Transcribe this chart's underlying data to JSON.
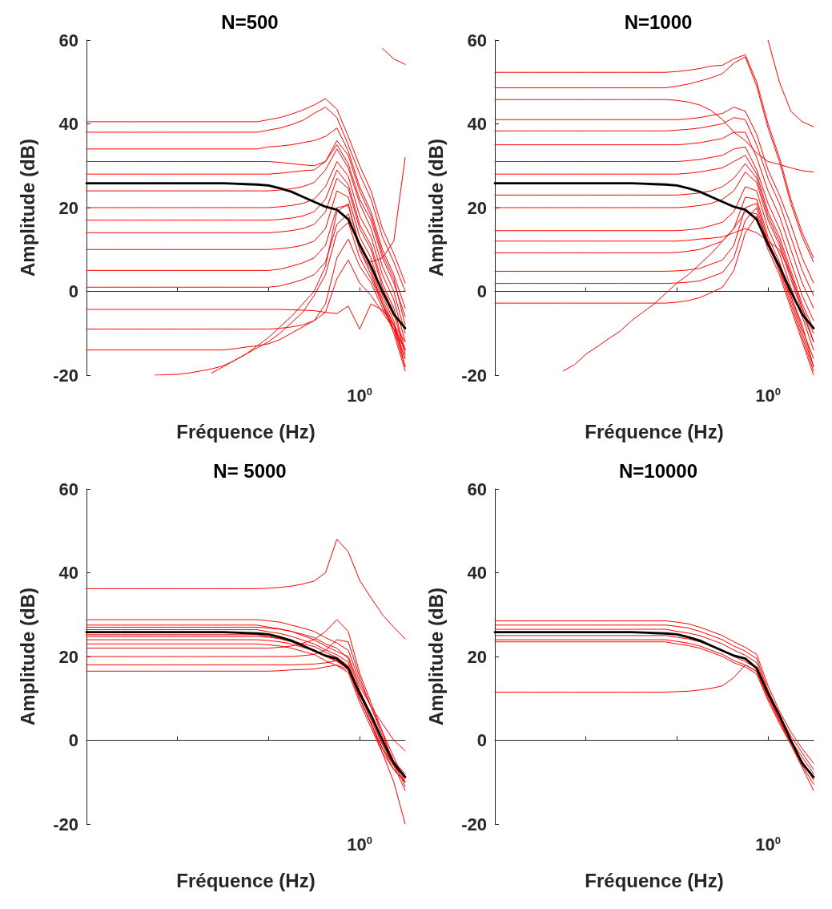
{
  "chart_data": [
    {
      "type": "line",
      "title": "N=500",
      "xlabel": "Fréquence (Hz)",
      "ylabel": "Amplitude (dB)",
      "marker": "none",
      "line_style": "solid",
      "ylim": [
        -20,
        60
      ],
      "yticks": [
        -20,
        0,
        20,
        40,
        60
      ],
      "categories": [
        null,
        null,
        null,
        null,
        null,
        null,
        null,
        null,
        null,
        null,
        null,
        null,
        null,
        null,
        null,
        null,
        null,
        null,
        null,
        null,
        null,
        null,
        null,
        null,
        "10$^{0}$",
        null,
        null,
        null,
        null
      ],
      "series": [
        {
          "color": "#ff0000",
          "values": [
            40.5,
            40.5,
            40.5,
            40.5,
            40.5,
            40.5,
            40.5,
            40.5,
            40.5,
            40.5,
            40.5,
            40.5,
            40.5,
            40.5,
            40.5,
            40.5,
            41,
            41.5,
            42.3,
            43.3,
            44.5,
            46,
            43.5,
            37,
            30,
            24,
            15,
            9,
            2
          ]
        },
        {
          "color": "#ff0000",
          "values": [
            38,
            38,
            38,
            38,
            38,
            38,
            38,
            38,
            38,
            38,
            38,
            38,
            38,
            38,
            38,
            38,
            38.5,
            39,
            39.8,
            40.8,
            42.5,
            44,
            41.5,
            35,
            28,
            22,
            13,
            7,
            0
          ]
        },
        {
          "color": "#ff0000",
          "values": [
            34,
            34,
            34,
            34,
            34,
            34,
            34,
            34,
            34,
            34,
            34,
            34,
            34,
            34,
            34,
            34,
            34.5,
            34.7,
            35,
            35.5,
            36,
            37,
            39,
            33.5,
            25,
            19,
            10,
            4,
            -4
          ]
        },
        {
          "color": "#ff0000",
          "values": [
            31,
            31,
            31,
            31,
            31,
            31,
            31,
            31,
            31,
            31,
            31,
            31,
            31,
            31,
            31,
            31,
            31,
            30.8,
            30.5,
            30.2,
            30,
            31,
            35,
            30.5,
            22,
            17,
            8,
            2,
            -6
          ]
        },
        {
          "color": "#ff0000",
          "values": [
            28,
            28,
            28,
            28,
            28,
            28,
            28,
            28,
            28,
            28,
            28,
            28,
            28,
            28,
            28,
            28,
            28,
            28.2,
            28.5,
            28.8,
            29,
            31,
            36,
            32.5,
            24,
            18,
            9,
            3,
            -8
          ]
        },
        {
          "color": "#ff0000",
          "values": [
            24,
            24,
            24,
            24,
            24,
            24,
            24,
            24,
            24,
            24,
            24,
            24,
            24,
            24,
            24,
            24,
            24,
            24.2,
            24.5,
            25,
            26,
            29,
            34,
            29.5,
            21,
            15,
            6,
            0,
            -10
          ]
        },
        {
          "color": "#ff0000",
          "values": [
            20,
            20,
            20,
            20,
            20,
            20,
            20,
            20,
            20,
            20,
            20,
            20,
            20,
            20,
            20,
            20,
            20,
            20.2,
            20.5,
            21,
            22,
            25,
            31,
            27.5,
            18,
            13,
            4,
            -2,
            -12
          ]
        },
        {
          "color": "#ff0000",
          "values": [
            17,
            17,
            17,
            17,
            17,
            17,
            17,
            17,
            17,
            17,
            17,
            17,
            17,
            17,
            17,
            17,
            17,
            17.2,
            17.5,
            18,
            19,
            22,
            29,
            25.5,
            16,
            11,
            2,
            -4,
            -14
          ]
        },
        {
          "color": "#ff0000",
          "values": [
            14,
            14,
            14,
            14,
            14,
            14,
            14,
            14,
            14,
            14,
            14,
            14,
            14,
            14,
            14,
            14,
            14,
            14.2,
            14.5,
            15,
            16,
            19,
            27,
            24.5,
            15,
            10,
            1,
            -5,
            -15
          ]
        },
        {
          "color": "#ff0000",
          "values": [
            10,
            10,
            10,
            10,
            10,
            10,
            10,
            10,
            10,
            10,
            10,
            10,
            10,
            10,
            10,
            10,
            10,
            10.2,
            10.5,
            11,
            12,
            15,
            24,
            22.5,
            13,
            8,
            -1,
            -7,
            -18
          ]
        },
        {
          "color": "#ff0000",
          "values": [
            5,
            5,
            5,
            5,
            5,
            5,
            5,
            5,
            5,
            5,
            5,
            5,
            5,
            5,
            5,
            5,
            5,
            5.3,
            6,
            6.8,
            8,
            11,
            20,
            20.5,
            11,
            6,
            -2,
            -8,
            -16
          ]
        },
        {
          "color": "#ff0000",
          "values": [
            1,
            1,
            1,
            1,
            1,
            1,
            1,
            1,
            1,
            1,
            1,
            1,
            1,
            1,
            1,
            1,
            1,
            1.3,
            2,
            2.8,
            4,
            7,
            16,
            18.5,
            10,
            5,
            -3,
            -10,
            -19
          ]
        },
        {
          "color": "#ff0000",
          "values": [
            -4.3,
            -4.3,
            -4.3,
            -4.3,
            -4.3,
            -4.3,
            -4.3,
            -4.3,
            -4.3,
            -4.3,
            -4.3,
            -4.3,
            -4.3,
            -4.3,
            -4.3,
            -4.3,
            -4.3,
            -4.3,
            -4.4,
            -4.5,
            -4.6,
            -5,
            -5.3,
            -3.5,
            -9,
            -3,
            -4.5,
            -8,
            -12
          ]
        },
        {
          "color": "#ff0000",
          "values": [
            -9,
            -9,
            -9,
            -9,
            -9,
            -9,
            -9,
            -9,
            -9,
            -9,
            -9,
            -9,
            -9,
            -9,
            -9,
            -9,
            -9,
            -8.8,
            -8.5,
            -8,
            -7,
            -5,
            3,
            7.5,
            2,
            -1,
            -5,
            -9,
            -14
          ]
        },
        {
          "color": "#ff0000",
          "values": [
            -14,
            -14,
            -14,
            -14,
            -14,
            -14,
            -14,
            -14,
            -14,
            -14,
            -14,
            -14,
            -14,
            -13.7,
            -13.3,
            -13,
            -12.5,
            -11.5,
            -10,
            -8.5,
            -7,
            -3,
            8,
            12.5,
            6,
            2,
            -4,
            -9,
            -18
          ]
        },
        {
          "color": "#ff0000",
          "values": [
            null,
            null,
            null,
            null,
            null,
            null,
            -20,
            -19.9,
            -19.8,
            -19.5,
            -19,
            -18.5,
            -17.8,
            -16.5,
            -15,
            -13.5,
            -12,
            -10,
            -7.5,
            -5,
            -1,
            4,
            14,
            16.5,
            8,
            3,
            -3,
            -8,
            -14
          ]
        },
        {
          "color": "#ff0000",
          "values": [
            null,
            null,
            null,
            null,
            null,
            null,
            null,
            null,
            null,
            null,
            null,
            -19.5,
            -18,
            -16.5,
            -15,
            -13,
            -11,
            -8.5,
            -6,
            -3,
            0,
            6,
            19,
            21,
            10,
            4,
            -3,
            -9,
            -16
          ]
        },
        {
          "color": "#ff0000",
          "values": [
            null,
            null,
            null,
            null,
            null,
            null,
            null,
            null,
            null,
            null,
            null,
            null,
            null,
            null,
            null,
            null,
            null,
            null,
            null,
            null,
            null,
            null,
            null,
            null,
            null,
            null,
            58,
            55.5,
            54.2
          ]
        },
        {
          "color": "#ff0000",
          "values": [
            null,
            null,
            null,
            null,
            null,
            null,
            null,
            null,
            null,
            null,
            null,
            null,
            null,
            null,
            null,
            null,
            null,
            null,
            null,
            null,
            null,
            null,
            null,
            null,
            10,
            7,
            8,
            12,
            32
          ]
        },
        {
          "color": "#000000",
          "values": [
            25.8,
            25.8,
            25.8,
            25.8,
            25.8,
            25.8,
            25.8,
            25.8,
            25.8,
            25.8,
            25.8,
            25.8,
            25.8,
            25.7,
            25.6,
            25.5,
            25.3,
            24.6,
            23.8,
            22.6,
            21.4,
            20.2,
            19.5,
            17.2,
            11.2,
            6,
            0,
            -5.5,
            -8.8
          ]
        }
      ]
    },
    {
      "type": "line",
      "title": "N=1000",
      "xlabel": "Fréquence (Hz)",
      "ylabel": "Amplitude (dB)",
      "marker": "none",
      "line_style": "solid",
      "ylim": [
        -20,
        60
      ],
      "yticks": [
        -20,
        0,
        20,
        40,
        60
      ],
      "categories": [
        null,
        null,
        null,
        null,
        null,
        null,
        null,
        null,
        null,
        null,
        null,
        null,
        null,
        null,
        null,
        null,
        null,
        null,
        null,
        null,
        null,
        null,
        null,
        null,
        "10$^{0}$",
        null,
        null,
        null,
        null
      ],
      "series": [
        {
          "color": "#ff0000",
          "values": [
            52.3,
            52.3,
            52.3,
            52.3,
            52.3,
            52.3,
            52.3,
            52.3,
            52.3,
            52.3,
            52.3,
            52.3,
            52.3,
            52.3,
            52.3,
            52.3,
            52.5,
            52.8,
            53.2,
            53.8,
            54,
            55.5,
            56.5,
            50,
            40,
            32,
            22,
            14,
            8
          ]
        },
        {
          "color": "#ff0000",
          "values": [
            48.6,
            48.6,
            48.6,
            48.6,
            48.6,
            48.6,
            48.6,
            48.6,
            48.6,
            48.6,
            48.6,
            48.6,
            48.6,
            48.6,
            48.6,
            48.6,
            49,
            49.5,
            50.2,
            51,
            52,
            54.5,
            56,
            49,
            39,
            31,
            21,
            13,
            7
          ]
        },
        {
          "color": "#ff0000",
          "values": [
            45.8,
            45.8,
            45.8,
            45.8,
            45.8,
            45.8,
            45.8,
            45.8,
            45.8,
            45.8,
            45.8,
            45.8,
            45.8,
            45.8,
            45.8,
            45.8,
            45.6,
            45.2,
            44.5,
            43.2,
            41,
            38,
            36,
            33,
            31,
            30.3,
            29.5,
            28.8,
            28.5
          ]
        },
        {
          "color": "#ff0000",
          "values": [
            41,
            41,
            41,
            41,
            41,
            41,
            41,
            41,
            41,
            41,
            41,
            41,
            41,
            41,
            41,
            41,
            41,
            41.2,
            41.5,
            42,
            42.5,
            44,
            43,
            37.5,
            29,
            23,
            16,
            8,
            2
          ]
        },
        {
          "color": "#ff0000",
          "values": [
            38.3,
            38.3,
            38.3,
            38.3,
            38.3,
            38.3,
            38.3,
            38.3,
            38.3,
            38.3,
            38.3,
            38.3,
            38.3,
            38.3,
            38.3,
            38.3,
            38.5,
            38.7,
            39,
            39.5,
            40,
            41.5,
            41,
            35,
            27,
            21,
            13,
            5,
            -1
          ]
        },
        {
          "color": "#ff0000",
          "values": [
            35,
            35,
            35,
            35,
            35,
            35,
            35,
            35,
            35,
            35,
            35,
            35,
            35,
            35,
            35,
            35,
            35,
            35.2,
            35.5,
            36,
            36.5,
            38,
            38,
            32,
            24,
            18,
            10,
            2,
            -4
          ]
        },
        {
          "color": "#ff0000",
          "values": [
            31,
            31,
            31,
            31,
            31,
            31,
            31,
            31,
            31,
            31,
            31,
            31,
            31,
            31,
            31,
            31,
            31,
            31.2,
            31.5,
            32,
            32.5,
            34,
            34.5,
            29,
            21,
            15,
            7,
            -1,
            -7
          ]
        },
        {
          "color": "#ff0000",
          "values": [
            28,
            28,
            28,
            28,
            28,
            28,
            28,
            28,
            28,
            28,
            28,
            28,
            28,
            28,
            28,
            28,
            28,
            28.2,
            28.5,
            29,
            29.5,
            31,
            32.5,
            28,
            19,
            13,
            5,
            -3,
            -9
          ]
        },
        {
          "color": "#ff0000",
          "values": [
            23,
            23,
            23,
            23,
            23,
            23,
            23,
            23,
            23,
            23,
            23,
            23,
            23,
            23,
            23,
            23,
            23,
            23.2,
            23.5,
            24,
            25,
            27,
            30.5,
            27,
            18,
            12,
            4,
            -4,
            -10
          ]
        },
        {
          "color": "#ff0000",
          "values": [
            20,
            20,
            20,
            20,
            20,
            20,
            20,
            20,
            20,
            20,
            20,
            20,
            20,
            20,
            20,
            20,
            20,
            20.2,
            20.5,
            21,
            22,
            24,
            28.5,
            26,
            17,
            11,
            3,
            -5,
            -12
          ]
        },
        {
          "color": "#ff0000",
          "values": [
            14.5,
            14.5,
            14.5,
            14.5,
            14.5,
            14.5,
            14.5,
            14.5,
            14.5,
            14.5,
            14.5,
            14.5,
            14.5,
            14.5,
            14.5,
            14.5,
            14.5,
            14.7,
            15,
            15.7,
            16.5,
            19,
            25,
            24,
            15,
            9,
            1,
            -6,
            -14
          ]
        },
        {
          "color": "#ff0000",
          "values": [
            12,
            12,
            12,
            12,
            12,
            12,
            12,
            12,
            12,
            12,
            12,
            12,
            12,
            12,
            12,
            12,
            12,
            12.2,
            12.5,
            12.7,
            13,
            14,
            15,
            14,
            12,
            10,
            4,
            -4,
            -12
          ]
        },
        {
          "color": "#ff0000",
          "values": [
            9.2,
            9.2,
            9.2,
            9.2,
            9.2,
            9.2,
            9.2,
            9.2,
            9.2,
            9.2,
            9.2,
            9.2,
            9.2,
            9.2,
            9.2,
            9.2,
            9.3,
            9.6,
            10,
            11,
            12,
            15,
            22.5,
            22,
            13,
            7,
            -1,
            -9,
            -16
          ]
        },
        {
          "color": "#ff0000",
          "values": [
            4.8,
            4.8,
            4.8,
            4.8,
            4.8,
            4.8,
            4.8,
            4.8,
            4.8,
            4.8,
            4.8,
            4.8,
            4.8,
            4.8,
            4.8,
            4.8,
            4.9,
            5.1,
            5.5,
            6.5,
            7.5,
            11,
            20,
            21,
            12,
            6,
            -2,
            -10,
            -18
          ]
        },
        {
          "color": "#ff0000",
          "values": [
            1.9,
            1.9,
            1.9,
            1.9,
            1.9,
            1.9,
            1.9,
            1.9,
            1.9,
            1.9,
            1.9,
            1.9,
            1.9,
            1.9,
            1.9,
            1.9,
            2,
            2.2,
            2.5,
            3.5,
            4.5,
            8,
            17,
            20,
            11,
            5,
            -3,
            -11,
            -19
          ]
        },
        {
          "color": "#ff0000",
          "values": [
            -2.8,
            -2.8,
            -2.8,
            -2.8,
            -2.8,
            -2.8,
            -2.8,
            -2.8,
            -2.8,
            -2.8,
            -2.8,
            -2.8,
            -2.8,
            -2.8,
            -2.8,
            -2.8,
            -2.6,
            -2.2,
            -1.5,
            -0.3,
            1,
            5,
            14,
            18,
            10,
            4,
            -4,
            -12,
            -20
          ]
        },
        {
          "color": "#ff0000",
          "values": [
            null,
            null,
            null,
            null,
            null,
            null,
            -19,
            -17.5,
            -15,
            -13.2,
            -11.3,
            -9.5,
            -7,
            -5,
            -3,
            -0.5,
            2,
            4,
            6.5,
            9,
            12,
            15,
            19,
            18.5,
            12,
            5,
            -1,
            -8,
            -18
          ]
        },
        {
          "color": "#ff0000",
          "values": [
            null,
            null,
            null,
            null,
            null,
            null,
            null,
            null,
            null,
            null,
            null,
            null,
            null,
            null,
            null,
            null,
            null,
            null,
            null,
            null,
            null,
            null,
            null,
            null,
            60,
            50,
            43,
            40.5,
            39.3
          ]
        },
        {
          "color": "#000000",
          "values": [
            25.8,
            25.8,
            25.8,
            25.8,
            25.8,
            25.8,
            25.8,
            25.8,
            25.8,
            25.8,
            25.8,
            25.8,
            25.8,
            25.7,
            25.6,
            25.5,
            25.3,
            24.6,
            23.8,
            22.6,
            21.4,
            20.2,
            19.5,
            17.2,
            11.2,
            6,
            0,
            -5.5,
            -8.8
          ]
        }
      ]
    },
    {
      "type": "line",
      "title": "N= 5000",
      "xlabel": "Fréquence (Hz)",
      "ylabel": "Amplitude (dB)",
      "marker": "none",
      "line_style": "solid",
      "ylim": [
        -20,
        60
      ],
      "yticks": [
        -20,
        0,
        20,
        40,
        60
      ],
      "categories": [
        null,
        null,
        null,
        null,
        null,
        null,
        null,
        null,
        null,
        null,
        null,
        null,
        null,
        null,
        null,
        null,
        null,
        null,
        null,
        null,
        null,
        null,
        null,
        null,
        "10$^{0}$",
        null,
        null,
        null,
        null
      ],
      "series": [
        {
          "color": "#ff0000",
          "values": [
            36.2,
            36.2,
            36.2,
            36.2,
            36.2,
            36.2,
            36.2,
            36.2,
            36.2,
            36.2,
            36.2,
            36.2,
            36.2,
            36.2,
            36.2,
            36.2,
            36.3,
            36.5,
            36.8,
            37.3,
            38,
            40,
            48,
            45,
            38.2,
            34,
            30,
            27,
            24.2
          ]
        },
        {
          "color": "#ff0000",
          "values": [
            28.8,
            28.8,
            28.8,
            28.8,
            28.8,
            28.8,
            28.8,
            28.8,
            28.8,
            28.8,
            28.8,
            28.8,
            28.8,
            28.8,
            28.8,
            28.8,
            28.5,
            28.2,
            27.5,
            26.8,
            26,
            24.5,
            23.2,
            21.5,
            14,
            8,
            2,
            -4,
            -10
          ]
        },
        {
          "color": "#ff0000",
          "values": [
            27.5,
            27.5,
            27.5,
            27.5,
            27.5,
            27.5,
            27.5,
            27.5,
            27.5,
            27.5,
            27.5,
            27.5,
            27.5,
            27.5,
            27.5,
            27.5,
            27,
            26.6,
            26,
            25.3,
            24.5,
            23,
            22,
            19.5,
            12,
            6,
            0,
            -5,
            -11
          ]
        },
        {
          "color": "#ff0000",
          "values": [
            27,
            27,
            27,
            27,
            27,
            27,
            27,
            27,
            27,
            27,
            27,
            27,
            27,
            27,
            27,
            27,
            26.8,
            26.5,
            26,
            25,
            24,
            22.5,
            21.2,
            20,
            13,
            8,
            4,
            0,
            -2.5
          ]
        },
        {
          "color": "#ff0000",
          "values": [
            26.4,
            26.4,
            26.4,
            26.4,
            26.4,
            26.4,
            26.4,
            26.4,
            26.4,
            26.4,
            26.4,
            26.4,
            26.4,
            26.4,
            26.4,
            26.4,
            25.9,
            25.5,
            24.8,
            23.9,
            23,
            21.6,
            20.4,
            18.6,
            11,
            5,
            -1,
            -6,
            -9
          ]
        },
        {
          "color": "#ff0000",
          "values": [
            25.2,
            25.2,
            25.2,
            25.2,
            25.2,
            25.2,
            25.2,
            25.2,
            25.2,
            25.2,
            25.2,
            25.2,
            25.2,
            25.2,
            25.2,
            25.2,
            24.8,
            24.2,
            23.5,
            22.6,
            21.6,
            20.2,
            19,
            17,
            10,
            4,
            -3,
            -10,
            -20
          ]
        },
        {
          "color": "#ff0000",
          "values": [
            24.8,
            24.8,
            24.8,
            24.8,
            24.8,
            24.8,
            24.8,
            24.8,
            24.8,
            24.8,
            24.8,
            24.8,
            24.8,
            24.8,
            24.8,
            24.8,
            24.6,
            24.3,
            23.8,
            23,
            22.4,
            21,
            19.8,
            17.8,
            11,
            5,
            -1,
            -6,
            -10
          ]
        },
        {
          "color": "#ff0000",
          "values": [
            24,
            24,
            24,
            24,
            24,
            24,
            24,
            24,
            24,
            24,
            24,
            24,
            24,
            24,
            24,
            24,
            23.8,
            23.5,
            23,
            22.2,
            21.5,
            20,
            18.8,
            17,
            10,
            4,
            -2,
            -6,
            -9
          ]
        },
        {
          "color": "#ff0000",
          "values": [
            23,
            23,
            23,
            23,
            23,
            23,
            23,
            23,
            23,
            23,
            23,
            23,
            23,
            23,
            23,
            23,
            22.8,
            22.5,
            22,
            21.2,
            20.5,
            19,
            17.8,
            16.2,
            9,
            3,
            -3,
            -7,
            -10
          ]
        },
        {
          "color": "#ff0000",
          "values": [
            22,
            22,
            22,
            22,
            22,
            22,
            22,
            22,
            22,
            22,
            22,
            22,
            22,
            22,
            22,
            22,
            22,
            22.2,
            22.5,
            23.2,
            24,
            26,
            28.8,
            26,
            16,
            9,
            2,
            -6,
            -12
          ]
        },
        {
          "color": "#ff0000",
          "values": [
            20,
            20,
            20,
            20,
            20,
            20,
            20,
            20,
            20,
            20,
            20,
            20,
            20,
            20,
            20,
            20,
            20,
            20,
            20,
            20.2,
            20.5,
            21.5,
            24,
            23.5,
            15,
            8,
            1,
            -5,
            -8
          ]
        },
        {
          "color": "#ff0000",
          "values": [
            18,
            18,
            18,
            18,
            18,
            18,
            18,
            18,
            18,
            18,
            18,
            18,
            18,
            18,
            18,
            18,
            18,
            18,
            18,
            18.1,
            18.2,
            18.5,
            19,
            17.5,
            10,
            4,
            -2,
            -6,
            -9
          ]
        },
        {
          "color": "#ff0000",
          "values": [
            16.5,
            16.5,
            16.5,
            16.5,
            16.5,
            16.5,
            16.5,
            16.5,
            16.5,
            16.5,
            16.5,
            16.5,
            16.5,
            16.5,
            16.5,
            16.5,
            16.5,
            16.6,
            16.8,
            16.9,
            17,
            17.5,
            18,
            16.8,
            10,
            4,
            -2,
            -7,
            -10
          ]
        },
        {
          "color": "#000000",
          "values": [
            25.8,
            25.8,
            25.8,
            25.8,
            25.8,
            25.8,
            25.8,
            25.8,
            25.8,
            25.8,
            25.8,
            25.8,
            25.8,
            25.7,
            25.6,
            25.5,
            25.3,
            24.6,
            23.8,
            22.6,
            21.4,
            20.2,
            19.5,
            17.2,
            11.2,
            6,
            0,
            -5.5,
            -8.8
          ]
        }
      ]
    },
    {
      "type": "line",
      "title": "N=10000",
      "xlabel": "Fréquence (Hz)",
      "ylabel": "Amplitude (dB)",
      "marker": "none",
      "line_style": "solid",
      "ylim": [
        -20,
        60
      ],
      "yticks": [
        -20,
        0,
        20,
        40,
        60
      ],
      "categories": [
        null,
        null,
        null,
        null,
        null,
        null,
        null,
        null,
        null,
        null,
        null,
        null,
        null,
        null,
        null,
        null,
        null,
        null,
        null,
        null,
        null,
        null,
        null,
        null,
        "10$^{0}$",
        null,
        null,
        null,
        null
      ],
      "series": [
        {
          "color": "#ff0000",
          "values": [
            28.5,
            28.5,
            28.5,
            28.5,
            28.5,
            28.5,
            28.5,
            28.5,
            28.5,
            28.5,
            28.5,
            28.5,
            28.5,
            28.5,
            28.5,
            28.5,
            28.2,
            27.8,
            27,
            26,
            25,
            23.5,
            22.2,
            20.5,
            13,
            7,
            2,
            -2,
            -5.5
          ]
        },
        {
          "color": "#ff0000",
          "values": [
            27.5,
            27.5,
            27.5,
            27.5,
            27.5,
            27.5,
            27.5,
            27.5,
            27.5,
            27.5,
            27.5,
            27.5,
            27.5,
            27.5,
            27.5,
            27.5,
            27.2,
            26.8,
            26,
            25,
            24,
            22.5,
            21.3,
            19.5,
            12,
            6,
            1,
            -3,
            -7
          ]
        },
        {
          "color": "#ff0000",
          "values": [
            26.5,
            26.5,
            26.5,
            26.5,
            26.5,
            26.5,
            26.5,
            26.5,
            26.5,
            26.5,
            26.5,
            26.5,
            26.5,
            26.5,
            26.5,
            26.5,
            26,
            25.6,
            25,
            24,
            23,
            21.5,
            20.3,
            18.5,
            11.5,
            5.5,
            0,
            -4,
            -8
          ]
        },
        {
          "color": "#ff0000",
          "values": [
            25,
            25,
            25,
            25,
            25,
            25,
            25,
            25,
            25,
            25,
            25,
            25,
            25,
            25,
            25,
            25,
            24.6,
            24.2,
            23.5,
            22.5,
            21.5,
            20,
            18.8,
            17.2,
            10.8,
            5,
            -0.5,
            -5,
            -9.5
          ]
        },
        {
          "color": "#ff0000",
          "values": [
            24,
            24,
            24,
            24,
            24,
            24,
            24,
            24,
            24,
            24,
            24,
            24,
            24,
            24,
            24,
            24,
            23.6,
            23.2,
            22.5,
            21.5,
            20.5,
            19,
            18,
            16.4,
            10,
            4.5,
            -1,
            -6,
            -10.5
          ]
        },
        {
          "color": "#ff0000",
          "values": [
            23.5,
            23.5,
            23.5,
            23.5,
            23.5,
            23.5,
            23.5,
            23.5,
            23.5,
            23.5,
            23.5,
            23.5,
            23.5,
            23.5,
            23.5,
            23.5,
            23,
            22.6,
            22,
            21,
            20,
            18.5,
            17.5,
            15.8,
            9.5,
            4,
            -1,
            -6.5,
            -12
          ]
        },
        {
          "color": "#ff0000",
          "values": [
            11.5,
            11.5,
            11.5,
            11.5,
            11.5,
            11.5,
            11.5,
            11.5,
            11.5,
            11.5,
            11.5,
            11.5,
            11.5,
            11.5,
            11.5,
            11.5,
            11.6,
            11.7,
            12,
            12.4,
            13,
            15,
            18,
            16.5,
            10.5,
            5,
            -0.5,
            -5,
            -9
          ]
        },
        {
          "color": "#000000",
          "values": [
            25.8,
            25.8,
            25.8,
            25.8,
            25.8,
            25.8,
            25.8,
            25.8,
            25.8,
            25.8,
            25.8,
            25.8,
            25.8,
            25.7,
            25.6,
            25.5,
            25.3,
            24.6,
            23.8,
            22.6,
            21.4,
            20.2,
            19.5,
            17.2,
            11.2,
            6,
            0,
            -5.5,
            -8.8
          ]
        }
      ]
    }
  ]
}
